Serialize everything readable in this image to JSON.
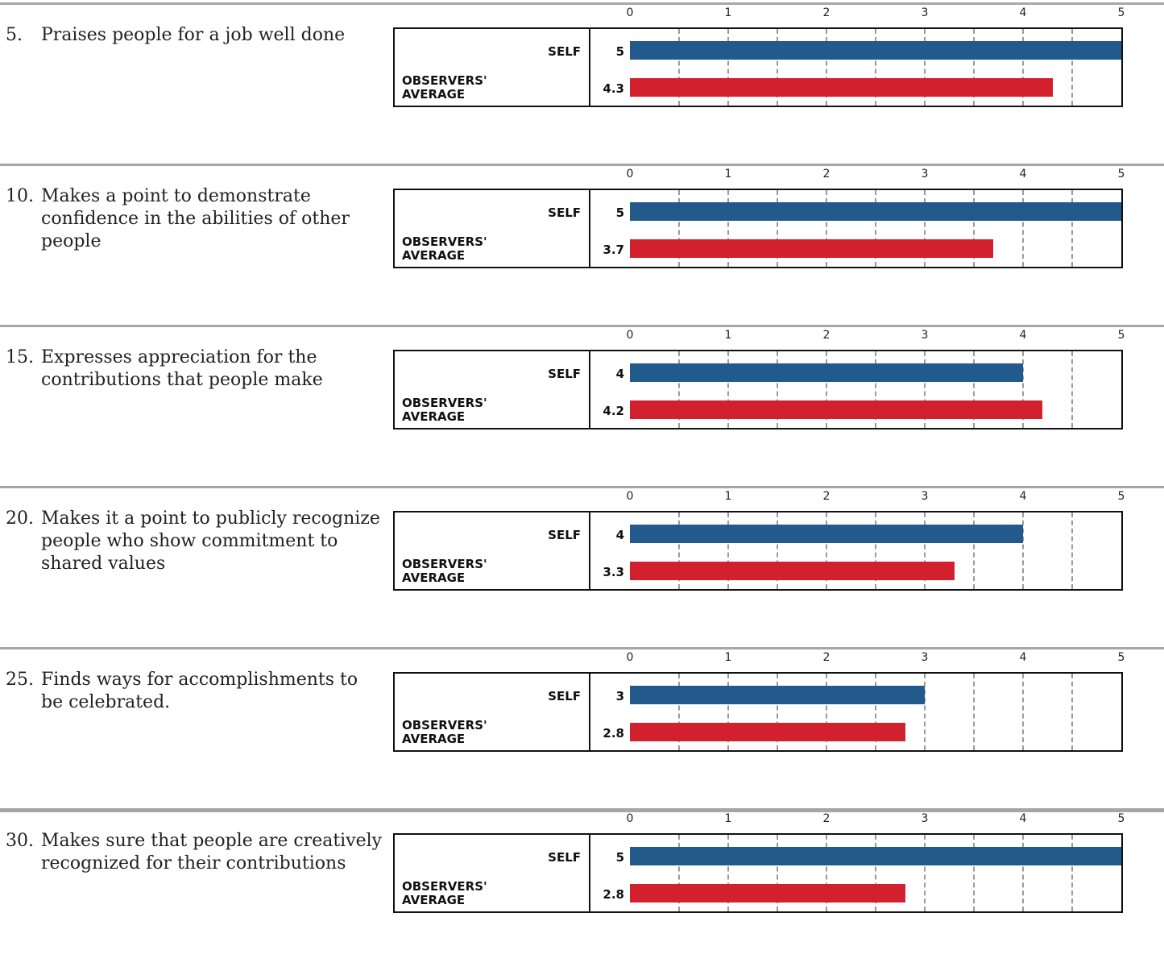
{
  "chart_data": {
    "type": "bar",
    "xlim": [
      0,
      5
    ],
    "ticks": [
      "0",
      "1",
      "2",
      "3",
      "4",
      "5"
    ],
    "self_label": "SELF",
    "observers_label": "OBSERVERS' AVERAGE",
    "colors": {
      "self": "#235a8c",
      "observers": "#d2202e"
    },
    "items": [
      {
        "number": "5.",
        "text": "Praises people for a job well done",
        "self": 5,
        "observers": 4.3
      },
      {
        "number": "10.",
        "text": "Makes a point to demonstrate confidence in the abilities of other people",
        "self": 5,
        "observers": 3.7
      },
      {
        "number": "15.",
        "text": "Expresses appreciation for the contributions that people make",
        "self": 4,
        "observers": 4.2
      },
      {
        "number": "20.",
        "text": "Makes it a point to publicly recognize people who show commitment to shared values",
        "self": 4,
        "observers": 3.3
      },
      {
        "number": "25.",
        "text": "Finds ways for accomplishments to be celebrated.",
        "self": 3,
        "observers": 2.8
      },
      {
        "number": "30.",
        "text": "Makes sure that people are creatively recognized for their contributions",
        "self": 5,
        "observers": 2.8
      }
    ]
  }
}
